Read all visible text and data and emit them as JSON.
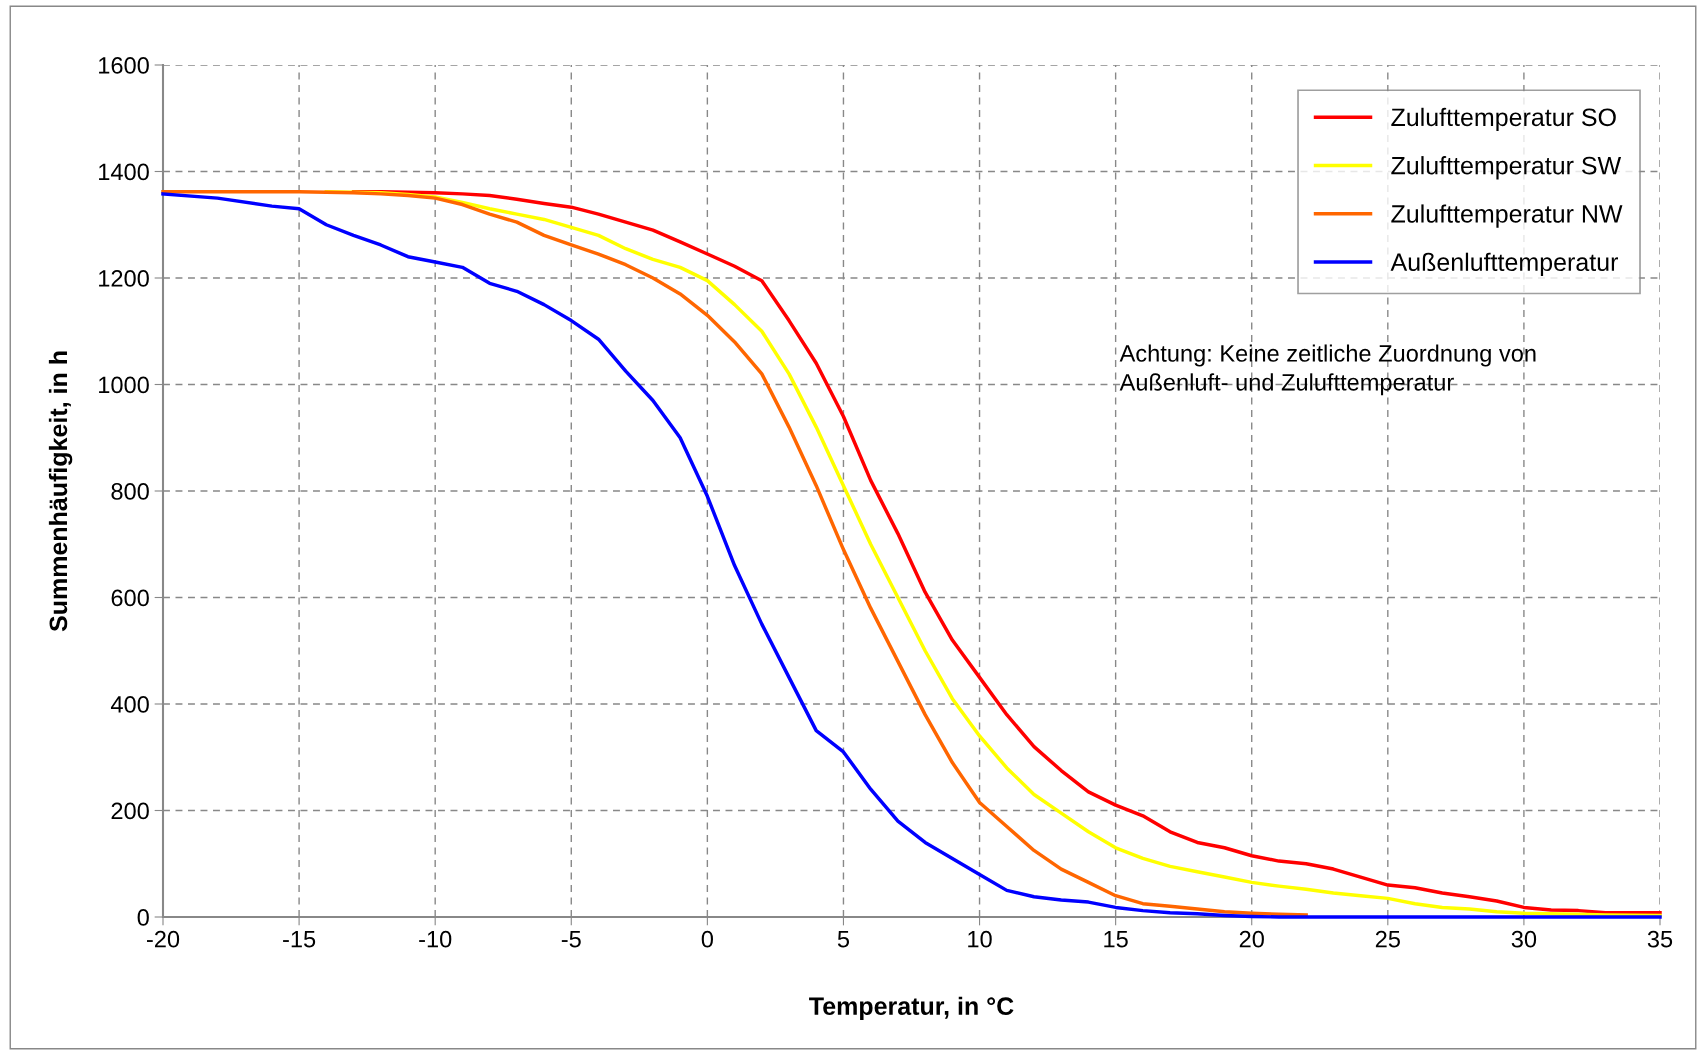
{
  "chart_data": {
    "type": "line",
    "xlabel": "Temperatur, in °C",
    "ylabel": "Summenhäufigkeit, in h",
    "xlim": [
      -20,
      35
    ],
    "xticks": [
      -20,
      -15,
      -10,
      -5,
      0,
      5,
      10,
      15,
      20,
      25,
      30,
      35
    ],
    "ylim": [
      0,
      1600
    ],
    "yticks": [
      0,
      200,
      400,
      600,
      800,
      1000,
      1200,
      1400,
      1600
    ],
    "grid": true,
    "legend": "top right",
    "line_style": "solid",
    "marker": "none",
    "annotations": [
      "Achtung: Keine zeitliche Zuordnung von\nAußenluft- und Zulufttemperatur"
    ],
    "x": [
      -20,
      -18,
      -16,
      -15,
      -14,
      -13,
      -12,
      -11,
      -10,
      -9,
      -8,
      -7,
      -6,
      -5,
      -4,
      -3,
      -2,
      -1,
      0,
      1,
      2,
      3,
      4,
      5,
      6,
      7,
      8,
      9,
      10,
      11,
      12,
      13,
      14,
      15,
      16,
      17,
      18,
      19,
      20,
      21,
      22,
      23,
      24,
      25,
      26,
      27,
      28,
      29,
      30,
      31,
      32,
      33,
      35
    ],
    "series": [
      {
        "name": "Zulufttemperatur SO",
        "color": "#ff0000",
        "values": [
          null,
          null,
          null,
          null,
          null,
          1362,
          1362,
          1361,
          1360,
          1358,
          1355,
          1348,
          1340,
          1333,
          1320,
          1305,
          1290,
          1268,
          1245,
          1222,
          1195,
          1120,
          1040,
          940,
          820,
          720,
          610,
          520,
          450,
          380,
          320,
          275,
          235,
          210,
          190,
          160,
          140,
          130,
          115,
          105,
          100,
          90,
          75,
          60,
          55,
          45,
          38,
          30,
          18,
          13,
          12,
          8,
          8
        ]
      },
      {
        "name": "Zulufttemperatur SW",
        "color": "#ffff00",
        "values": [
          null,
          null,
          null,
          null,
          1362,
          1361,
          1360,
          1357,
          1352,
          1342,
          1330,
          1320,
          1310,
          1295,
          1280,
          1255,
          1235,
          1220,
          1195,
          1150,
          1100,
          1020,
          920,
          810,
          700,
          600,
          500,
          410,
          340,
          280,
          230,
          195,
          160,
          130,
          110,
          95,
          85,
          75,
          65,
          58,
          52,
          45,
          40,
          35,
          25,
          18,
          15,
          10,
          7,
          6,
          5,
          4,
          3
        ]
      },
      {
        "name": "Zulufttemperatur NW",
        "color": "#ff6600",
        "values": [
          1362,
          1362,
          1362,
          1362,
          1361,
          1360,
          1358,
          1355,
          1350,
          1338,
          1320,
          1305,
          1280,
          1262,
          1245,
          1225,
          1200,
          1170,
          1130,
          1080,
          1020,
          920,
          810,
          690,
          580,
          480,
          380,
          290,
          215,
          170,
          125,
          90,
          65,
          40,
          25,
          20,
          15,
          10,
          7,
          5,
          4,
          null,
          null,
          null,
          null,
          null,
          null,
          null,
          null,
          null,
          null,
          null,
          null
        ]
      },
      {
        "name": "Außenlufttemperatur",
        "color": "#0000ff",
        "values": [
          1358,
          1350,
          1335,
          1330,
          1300,
          1280,
          1262,
          1240,
          1230,
          1220,
          1190,
          1175,
          1150,
          1120,
          1085,
          1025,
          970,
          900,
          790,
          660,
          550,
          450,
          350,
          310,
          240,
          180,
          140,
          110,
          80,
          50,
          38,
          32,
          28,
          18,
          12,
          8,
          6,
          3,
          1,
          0,
          0,
          0,
          0,
          0,
          0,
          0,
          0,
          0,
          0,
          0,
          0,
          0,
          0
        ]
      }
    ]
  }
}
